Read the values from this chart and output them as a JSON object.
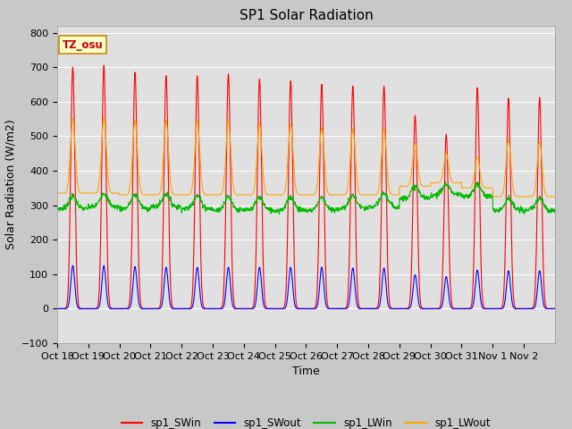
{
  "title": "SP1 Solar Radiation",
  "ylabel": "Solar Radiation (W/m2)",
  "xlabel": "Time",
  "ylim": [
    -100,
    820
  ],
  "yticks": [
    -100,
    0,
    100,
    200,
    300,
    400,
    500,
    600,
    700,
    800
  ],
  "xtick_labels": [
    "Oct 18",
    "Oct 19",
    "Oct 20",
    "Oct 21",
    "Oct 22",
    "Oct 23",
    "Oct 24",
    "Oct 25",
    "Oct 26",
    "Oct 27",
    "Oct 28",
    "Oct 29",
    "Oct 30",
    "Oct 31",
    "Nov 1",
    "Nov 2"
  ],
  "fig_bg_color": "#c8c8c8",
  "plot_bg_color": "#e0e0e0",
  "legend_labels": [
    "sp1_SWin",
    "sp1_SWout",
    "sp1_LWin",
    "sp1_LWout"
  ],
  "legend_colors": [
    "#ff0000",
    "#0000ff",
    "#00bb00",
    "#ffa500"
  ],
  "tz_label": "TZ_osu",
  "title_fontsize": 11,
  "label_fontsize": 9,
  "tick_fontsize": 8,
  "n_days": 16,
  "pts_per_day": 96,
  "SWin_peaks": [
    700,
    705,
    685,
    675,
    675,
    680,
    665,
    660,
    650,
    645,
    645,
    560,
    505,
    640,
    610,
    612
  ],
  "SWout_peaks": [
    125,
    125,
    122,
    120,
    120,
    120,
    120,
    120,
    120,
    118,
    118,
    98,
    93,
    112,
    110,
    110
  ],
  "LWin_bases": [
    290,
    295,
    290,
    295,
    290,
    285,
    285,
    285,
    285,
    290,
    295,
    320,
    330,
    325,
    285,
    285
  ],
  "LWin_bumps": [
    35,
    40,
    40,
    38,
    38,
    40,
    38,
    38,
    38,
    38,
    40,
    35,
    30,
    35,
    35,
    35
  ],
  "LWout_bases": [
    335,
    335,
    330,
    330,
    330,
    330,
    330,
    330,
    330,
    330,
    330,
    355,
    365,
    350,
    325,
    325
  ],
  "LWout_peaks": [
    550,
    555,
    545,
    545,
    545,
    545,
    535,
    535,
    525,
    520,
    520,
    480,
    450,
    440,
    490,
    485
  ]
}
